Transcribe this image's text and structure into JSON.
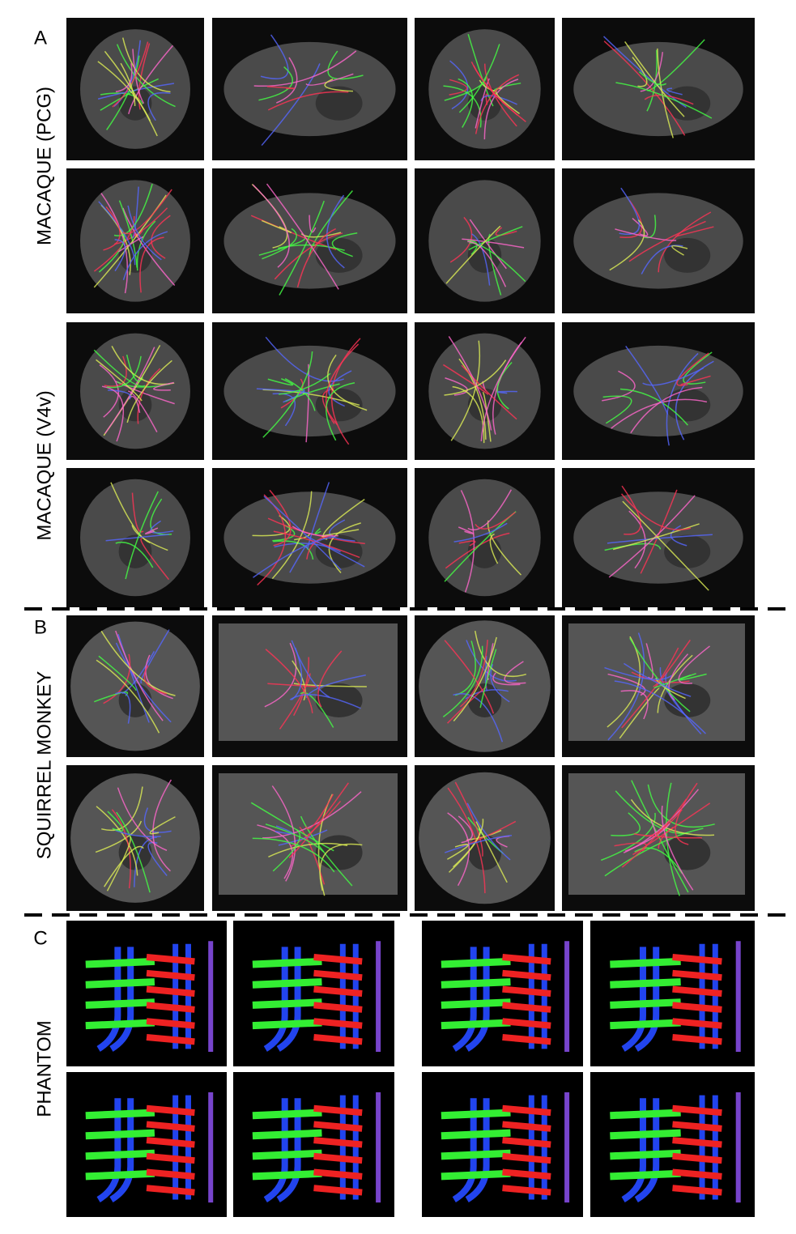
{
  "sections": [
    {
      "letter": "A",
      "groups": [
        {
          "label": "MACAQUE (PCG)"
        },
        {
          "label": "MACAQUE (V4v)"
        }
      ]
    },
    {
      "letter": "B",
      "groups": [
        {
          "label": "SQUIRREL MONKEY"
        }
      ]
    },
    {
      "letter": "C",
      "groups": [
        {
          "label": "PHANTOM"
        }
      ]
    }
  ]
}
